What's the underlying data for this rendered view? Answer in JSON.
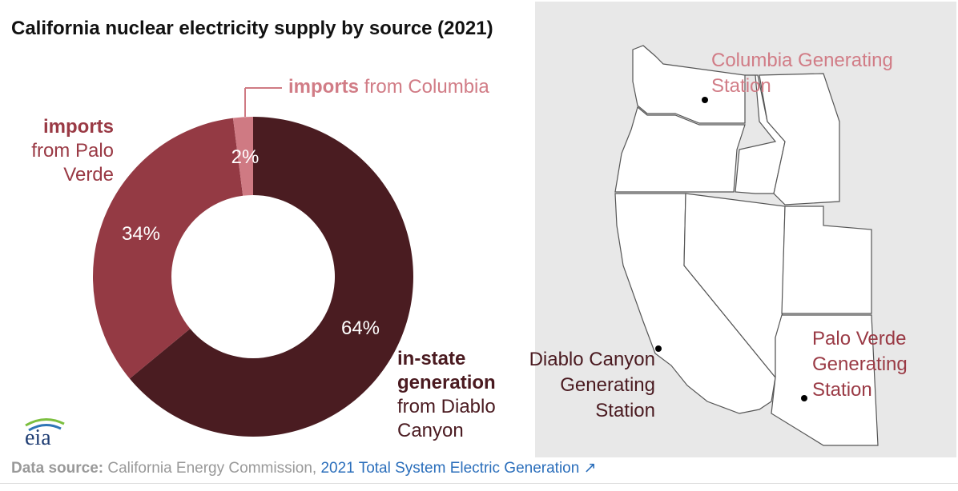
{
  "title": "California nuclear electricity supply by source (2021)",
  "chart_data": {
    "type": "pie",
    "title": "California nuclear electricity supply by source (2021)",
    "slices": [
      {
        "name": "in-state generation from Diablo Canyon",
        "value": 64,
        "label": "64%",
        "color": "#4a1c21"
      },
      {
        "name": "imports from Palo Verde",
        "value": 34,
        "label": "34%",
        "color": "#943a44"
      },
      {
        "name": "imports from Columbia",
        "value": 2,
        "label": "2%",
        "color": "#cf7a83"
      }
    ]
  },
  "labels": {
    "columbia": {
      "bold": "imports",
      "rest": " from Columbia"
    },
    "paloverde": {
      "bold": "imports",
      "rest": "from Palo Verde"
    },
    "instate": {
      "bold": "in-state generation",
      "rest": "from Diablo Canyon"
    }
  },
  "map": {
    "columbia": "Columbia Generating Station",
    "paloverde": "Palo Verde Generating Station",
    "diablo": "Diablo Canyon Generating Station"
  },
  "logo_text": "eia",
  "source": {
    "label": "Data source:",
    "text": " California Energy Commission, ",
    "link": "2021 Total System Electric Generation"
  }
}
